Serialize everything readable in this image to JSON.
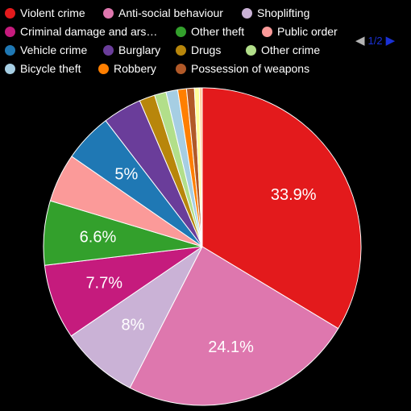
{
  "legend": {
    "items": [
      {
        "label": "Violent crime",
        "color": "#e31a1c"
      },
      {
        "label": "Anti-social behaviour",
        "color": "#de77ae"
      },
      {
        "label": "Shoplifting",
        "color": "#cab2d6"
      },
      {
        "label": "Criminal damage and ars…",
        "color": "#c51b7d"
      },
      {
        "label": "Other theft",
        "color": "#33a02c"
      },
      {
        "label": "Public order",
        "color": "#fb9a99"
      },
      {
        "label": "Vehicle crime",
        "color": "#1f78b4"
      },
      {
        "label": "Burglary",
        "color": "#6a3d9a"
      },
      {
        "label": "Drugs",
        "color": "#b8860b"
      },
      {
        "label": "Other crime",
        "color": "#b2df8a"
      },
      {
        "label": "Bicycle theft",
        "color": "#a6cee3"
      },
      {
        "label": "Robbery",
        "color": "#ff7f00"
      },
      {
        "label": "Possession of weapons",
        "color": "#b15928"
      }
    ],
    "pager": {
      "text": "1/2",
      "prev_icon": "triangle-left-icon",
      "next_icon": "triangle-right-icon"
    }
  },
  "chart_data": {
    "type": "pie",
    "title": "",
    "slices": [
      {
        "label": "Violent crime",
        "value": 33.9,
        "color": "#e31a1c",
        "data_label": "33.9%"
      },
      {
        "label": "Anti-social behaviour",
        "value": 24.1,
        "color": "#de77ae",
        "data_label": "24.1%"
      },
      {
        "label": "Shoplifting",
        "value": 8.0,
        "color": "#cab2d6",
        "data_label": "8%"
      },
      {
        "label": "Criminal damage and arson",
        "value": 7.7,
        "color": "#c51b7d",
        "data_label": "7.7%"
      },
      {
        "label": "Other theft",
        "value": 6.6,
        "color": "#33a02c",
        "data_label": "6.6%"
      },
      {
        "label": "Public order",
        "value": 5.0,
        "color": "#fb9a99",
        "data_label": ""
      },
      {
        "label": "Vehicle crime",
        "value": 5.0,
        "color": "#1f78b4",
        "data_label": "5%"
      },
      {
        "label": "Burglary",
        "value": 4.0,
        "color": "#6a3d9a",
        "data_label": ""
      },
      {
        "label": "Drugs",
        "value": 1.6,
        "color": "#b8860b",
        "data_label": ""
      },
      {
        "label": "Other crime",
        "value": 1.2,
        "color": "#b2df8a",
        "data_label": ""
      },
      {
        "label": "Bicycle theft",
        "value": 1.2,
        "color": "#a6cee3",
        "data_label": ""
      },
      {
        "label": "Robbery",
        "value": 0.9,
        "color": "#ff7f00",
        "data_label": ""
      },
      {
        "label": "Possession of weapons",
        "value": 0.8,
        "color": "#b15928",
        "data_label": ""
      },
      {
        "label": "",
        "value": 0.5,
        "color": "#ffff99",
        "data_label": ""
      },
      {
        "label": "",
        "value": 0.3,
        "color": "#ffd1a3",
        "data_label": ""
      }
    ],
    "start_angle": "12 o'clock",
    "direction": "clockwise",
    "legend_position": "top"
  }
}
